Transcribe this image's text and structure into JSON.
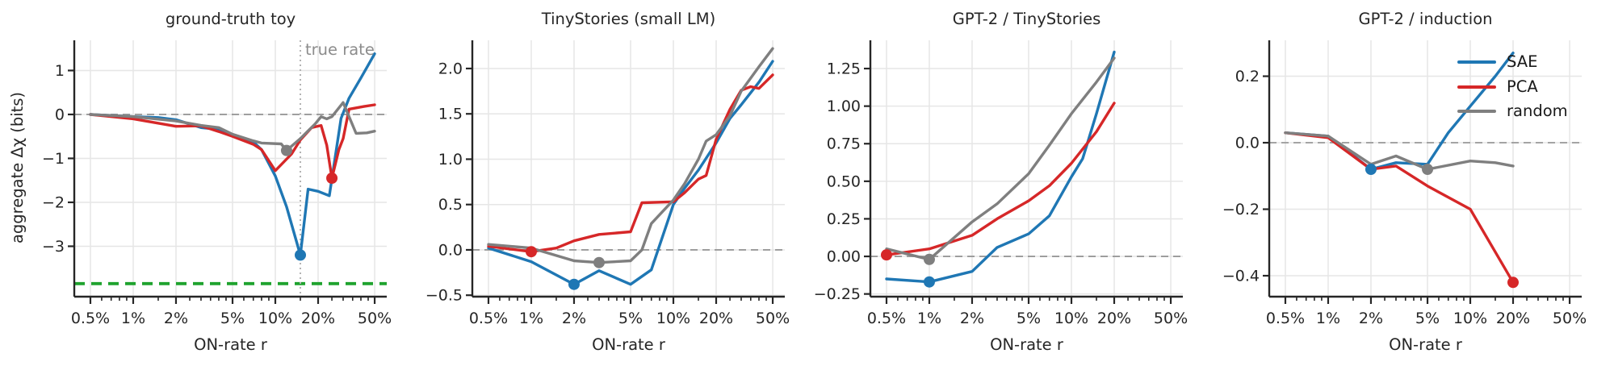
{
  "figure": {
    "y_axis_label": "aggregate Δχ (bits)",
    "x_axis_label": "ON-rate r",
    "colors": {
      "sae": "#1f77b4",
      "pca": "#d62728",
      "random": "#7f7f7f",
      "lower_bound_green": "#1fa32e",
      "zero_line": "#999999",
      "dotted_gray": "#b3b3b3",
      "grid": "#e6e6e6",
      "axis": "#262626",
      "annotation_gray": "#8c8c8c"
    },
    "legend": {
      "position": "upper-right-of-last-panel",
      "entries": [
        {
          "label": "SAE",
          "color_key": "sae"
        },
        {
          "label": "PCA",
          "color_key": "pca"
        },
        {
          "label": "random",
          "color_key": "random"
        }
      ]
    },
    "annotations": {
      "true_rate_label": "true rate"
    }
  },
  "chart_data": [
    {
      "id": "ground-truth-toy",
      "type": "line",
      "title": "ground-truth toy",
      "xlabel": "ON-rate r",
      "ylabel": "aggregate Δχ (bits)",
      "x_scale": "log",
      "x_unit": "percent",
      "xlim": [
        0.385,
        60.8
      ],
      "ylim": [
        -4.147,
        1.687
      ],
      "grid": true,
      "x_ticks": {
        "values": [
          0.5,
          1,
          2,
          5,
          10,
          20,
          50
        ],
        "labels": [
          "0.5%",
          "1%",
          "2%",
          "5%",
          "10%",
          "20%",
          "50%"
        ]
      },
      "x_minor_ticks": [
        0.6,
        0.7,
        0.8,
        0.9,
        1.5,
        2.5,
        3,
        3.5,
        4,
        4.5,
        6,
        7,
        8,
        9,
        15,
        25,
        30,
        35,
        40,
        45
      ],
      "y_ticks": {
        "values": [
          1,
          0,
          -1,
          -2,
          -3
        ],
        "labels": [
          "1",
          "0",
          "−1",
          "−2",
          "−3"
        ]
      },
      "zero_line": true,
      "ref_lines": [
        {
          "orient": "h",
          "value": -3.85,
          "style": "dashed",
          "color_key": "lower_bound_green",
          "width": 3.8,
          "name": "lower-bound-line",
          "label": ""
        },
        {
          "orient": "v",
          "value": 15,
          "style": "dotted",
          "color_key": "dotted_gray",
          "width": 2,
          "name": "true-rate-line",
          "label": "true rate"
        }
      ],
      "series": [
        {
          "name": "SAE",
          "color_key": "sae",
          "x": [
            0.5,
            1,
            1.5,
            2,
            3,
            4,
            5,
            7,
            8,
            10,
            12,
            15,
            17,
            20,
            24,
            29,
            33,
            40,
            50
          ],
          "y": [
            0,
            -0.05,
            -0.07,
            -0.12,
            -0.3,
            -0.34,
            -0.48,
            -0.62,
            -0.8,
            -1.4,
            -2.1,
            -3.2,
            -1.7,
            -1.75,
            -1.85,
            -0.09,
            0.37,
            0.83,
            1.38
          ],
          "marker": {
            "x": 15,
            "y": -3.2
          }
        },
        {
          "name": "PCA",
          "color_key": "pca",
          "x": [
            0.5,
            1,
            2,
            3,
            4,
            5,
            7,
            8,
            10,
            13,
            15,
            18,
            21,
            23,
            25,
            28,
            30,
            33,
            42,
            50
          ],
          "y": [
            0,
            -0.1,
            -0.27,
            -0.26,
            -0.39,
            -0.5,
            -0.68,
            -0.8,
            -1.28,
            -0.9,
            -0.58,
            -0.3,
            -0.25,
            -0.7,
            -1.45,
            -0.8,
            -0.55,
            0.12,
            0.18,
            0.22
          ],
          "marker": {
            "x": 25,
            "y": -1.45
          }
        },
        {
          "name": "random",
          "color_key": "random",
          "x": [
            0.5,
            1,
            2,
            3,
            4,
            5,
            7,
            8,
            11,
            12,
            15,
            19,
            21,
            23,
            25,
            30,
            37,
            44,
            50
          ],
          "y": [
            0,
            -0.05,
            -0.15,
            -0.25,
            -0.3,
            -0.45,
            -0.6,
            -0.65,
            -0.67,
            -0.82,
            -0.55,
            -0.22,
            -0.05,
            -0.1,
            -0.05,
            0.27,
            -0.43,
            -0.42,
            -0.38
          ],
          "marker": {
            "x": 12,
            "y": -0.82
          }
        }
      ]
    },
    {
      "id": "tinystories-small-lm",
      "type": "line",
      "title": "TinyStories (small LM)",
      "xlabel": "ON-rate r",
      "ylabel": "",
      "x_scale": "log",
      "x_unit": "percent",
      "xlim": [
        0.385,
        60.8
      ],
      "ylim": [
        -0.516,
        2.311
      ],
      "grid": true,
      "x_ticks": {
        "values": [
          0.5,
          1,
          2,
          5,
          10,
          20,
          50
        ],
        "labels": [
          "0.5%",
          "1%",
          "2%",
          "5%",
          "10%",
          "20%",
          "50%"
        ]
      },
      "x_minor_ticks": [
        0.6,
        0.7,
        0.8,
        0.9,
        1.5,
        2.5,
        3,
        3.5,
        4,
        4.5,
        6,
        7,
        8,
        9,
        15,
        25,
        30,
        35,
        40,
        45
      ],
      "y_ticks": {
        "values": [
          2.0,
          1.5,
          1.0,
          0.5,
          0.0,
          -0.5
        ],
        "labels": [
          "2.0",
          "1.5",
          "1.0",
          "0.5",
          "0.0",
          "−0.5"
        ]
      },
      "zero_line": true,
      "ref_lines": [],
      "series": [
        {
          "name": "SAE",
          "color_key": "sae",
          "x": [
            0.5,
            1,
            2,
            3,
            5,
            7,
            10,
            12,
            15,
            20,
            25,
            30,
            40,
            50
          ],
          "y": [
            0.02,
            -0.13,
            -0.38,
            -0.23,
            -0.38,
            -0.22,
            0.5,
            0.68,
            0.88,
            1.18,
            1.45,
            1.6,
            1.85,
            2.08
          ],
          "marker": {
            "x": 2,
            "y": -0.38
          }
        },
        {
          "name": "PCA",
          "color_key": "pca",
          "x": [
            0.5,
            1,
            1.5,
            2,
            3,
            5,
            6,
            10,
            12,
            15,
            17,
            20,
            25,
            30,
            35,
            40,
            50
          ],
          "y": [
            0.04,
            -0.02,
            0.02,
            0.1,
            0.17,
            0.2,
            0.52,
            0.53,
            0.63,
            0.78,
            0.82,
            1.22,
            1.55,
            1.76,
            1.8,
            1.78,
            1.93
          ],
          "marker": {
            "x": 1,
            "y": -0.02
          }
        },
        {
          "name": "random",
          "color_key": "random",
          "x": [
            0.5,
            1,
            2,
            3,
            5,
            6,
            7,
            10,
            12,
            15,
            17,
            20,
            25,
            30,
            40,
            50
          ],
          "y": [
            0.06,
            0.02,
            -0.12,
            -0.14,
            -0.12,
            0.0,
            0.29,
            0.55,
            0.73,
            1.0,
            1.2,
            1.27,
            1.48,
            1.75,
            2.02,
            2.22
          ],
          "marker": {
            "x": 3,
            "y": -0.14
          }
        }
      ]
    },
    {
      "id": "gpt2-tinystories",
      "type": "line",
      "title": "GPT-2 / TinyStories",
      "xlabel": "ON-rate r",
      "ylabel": "",
      "x_scale": "log",
      "x_unit": "percent",
      "xlim": [
        0.385,
        60.8
      ],
      "ylim": [
        -0.268,
        1.438
      ],
      "grid": true,
      "x_ticks": {
        "values": [
          0.5,
          1,
          2,
          5,
          10,
          20,
          50
        ],
        "labels": [
          "0.5%",
          "1%",
          "2%",
          "5%",
          "10%",
          "20%",
          "50%"
        ]
      },
      "x_minor_ticks": [
        0.6,
        0.7,
        0.8,
        0.9,
        1.5,
        2.5,
        3,
        3.5,
        4,
        4.5,
        6,
        7,
        8,
        9,
        15,
        25,
        30,
        35,
        40,
        45
      ],
      "y_ticks": {
        "values": [
          1.25,
          1.0,
          0.75,
          0.5,
          0.25,
          0.0,
          -0.25
        ],
        "labels": [
          "1.25",
          "1.00",
          "0.75",
          "0.50",
          "0.25",
          "0.00",
          "−0.25"
        ]
      },
      "zero_line": true,
      "ref_lines": [],
      "series": [
        {
          "name": "SAE",
          "color_key": "sae",
          "x": [
            0.5,
            1,
            2,
            3,
            5,
            7,
            10,
            12,
            15,
            20
          ],
          "y": [
            -0.15,
            -0.17,
            -0.1,
            0.06,
            0.15,
            0.27,
            0.53,
            0.65,
            0.95,
            1.36
          ],
          "marker": {
            "x": 1,
            "y": -0.17
          }
        },
        {
          "name": "PCA",
          "color_key": "pca",
          "x": [
            0.5,
            1,
            2,
            3,
            5,
            7,
            10,
            15,
            20
          ],
          "y": [
            0.01,
            0.05,
            0.14,
            0.25,
            0.37,
            0.47,
            0.62,
            0.83,
            1.02
          ],
          "marker": {
            "x": 0.5,
            "y": 0.01
          }
        },
        {
          "name": "random",
          "color_key": "random",
          "x": [
            0.5,
            1,
            2,
            3,
            5,
            7,
            10,
            15,
            20
          ],
          "y": [
            0.05,
            -0.02,
            0.23,
            0.35,
            0.55,
            0.74,
            0.95,
            1.16,
            1.32
          ],
          "marker": {
            "x": 1,
            "y": -0.02
          }
        }
      ]
    },
    {
      "id": "gpt2-induction",
      "type": "line",
      "title": "GPT-2 / induction",
      "xlabel": "ON-rate r",
      "ylabel": "",
      "x_scale": "log",
      "x_unit": "percent",
      "xlim": [
        0.385,
        60.8
      ],
      "ylim": [
        -0.463,
        0.308
      ],
      "grid": true,
      "has_legend": true,
      "x_ticks": {
        "values": [
          0.5,
          1,
          2,
          5,
          10,
          20,
          50
        ],
        "labels": [
          "0.5%",
          "1%",
          "2%",
          "5%",
          "10%",
          "20%",
          "50%"
        ]
      },
      "x_minor_ticks": [
        0.6,
        0.7,
        0.8,
        0.9,
        1.5,
        2.5,
        3,
        3.5,
        4,
        4.5,
        6,
        7,
        8,
        9,
        15,
        25,
        30,
        35,
        40,
        45
      ],
      "y_ticks": {
        "values": [
          0.2,
          0.0,
          -0.2,
          -0.4
        ],
        "labels": [
          "0.2",
          "0.0",
          "−0.2",
          "−0.4"
        ]
      },
      "zero_line": true,
      "ref_lines": [],
      "series": [
        {
          "name": "SAE",
          "color_key": "sae",
          "x": [
            0.5,
            1,
            2,
            3,
            5,
            7,
            10,
            15,
            20
          ],
          "y": [
            0.03,
            0.02,
            -0.08,
            -0.06,
            -0.065,
            0.03,
            0.11,
            0.2,
            0.27
          ],
          "marker": {
            "x": 2,
            "y": -0.08
          }
        },
        {
          "name": "PCA",
          "color_key": "pca",
          "x": [
            0.5,
            1,
            2,
            3,
            5,
            10,
            20
          ],
          "y": [
            0.03,
            0.015,
            -0.08,
            -0.07,
            -0.13,
            -0.2,
            -0.42
          ],
          "marker": {
            "x": 20,
            "y": -0.42
          }
        },
        {
          "name": "random",
          "color_key": "random",
          "x": [
            0.5,
            1,
            2,
            3,
            5,
            10,
            15,
            20
          ],
          "y": [
            0.03,
            0.02,
            -0.065,
            -0.04,
            -0.08,
            -0.055,
            -0.06,
            -0.07
          ],
          "marker": {
            "x": 5,
            "y": -0.08
          }
        }
      ]
    }
  ]
}
